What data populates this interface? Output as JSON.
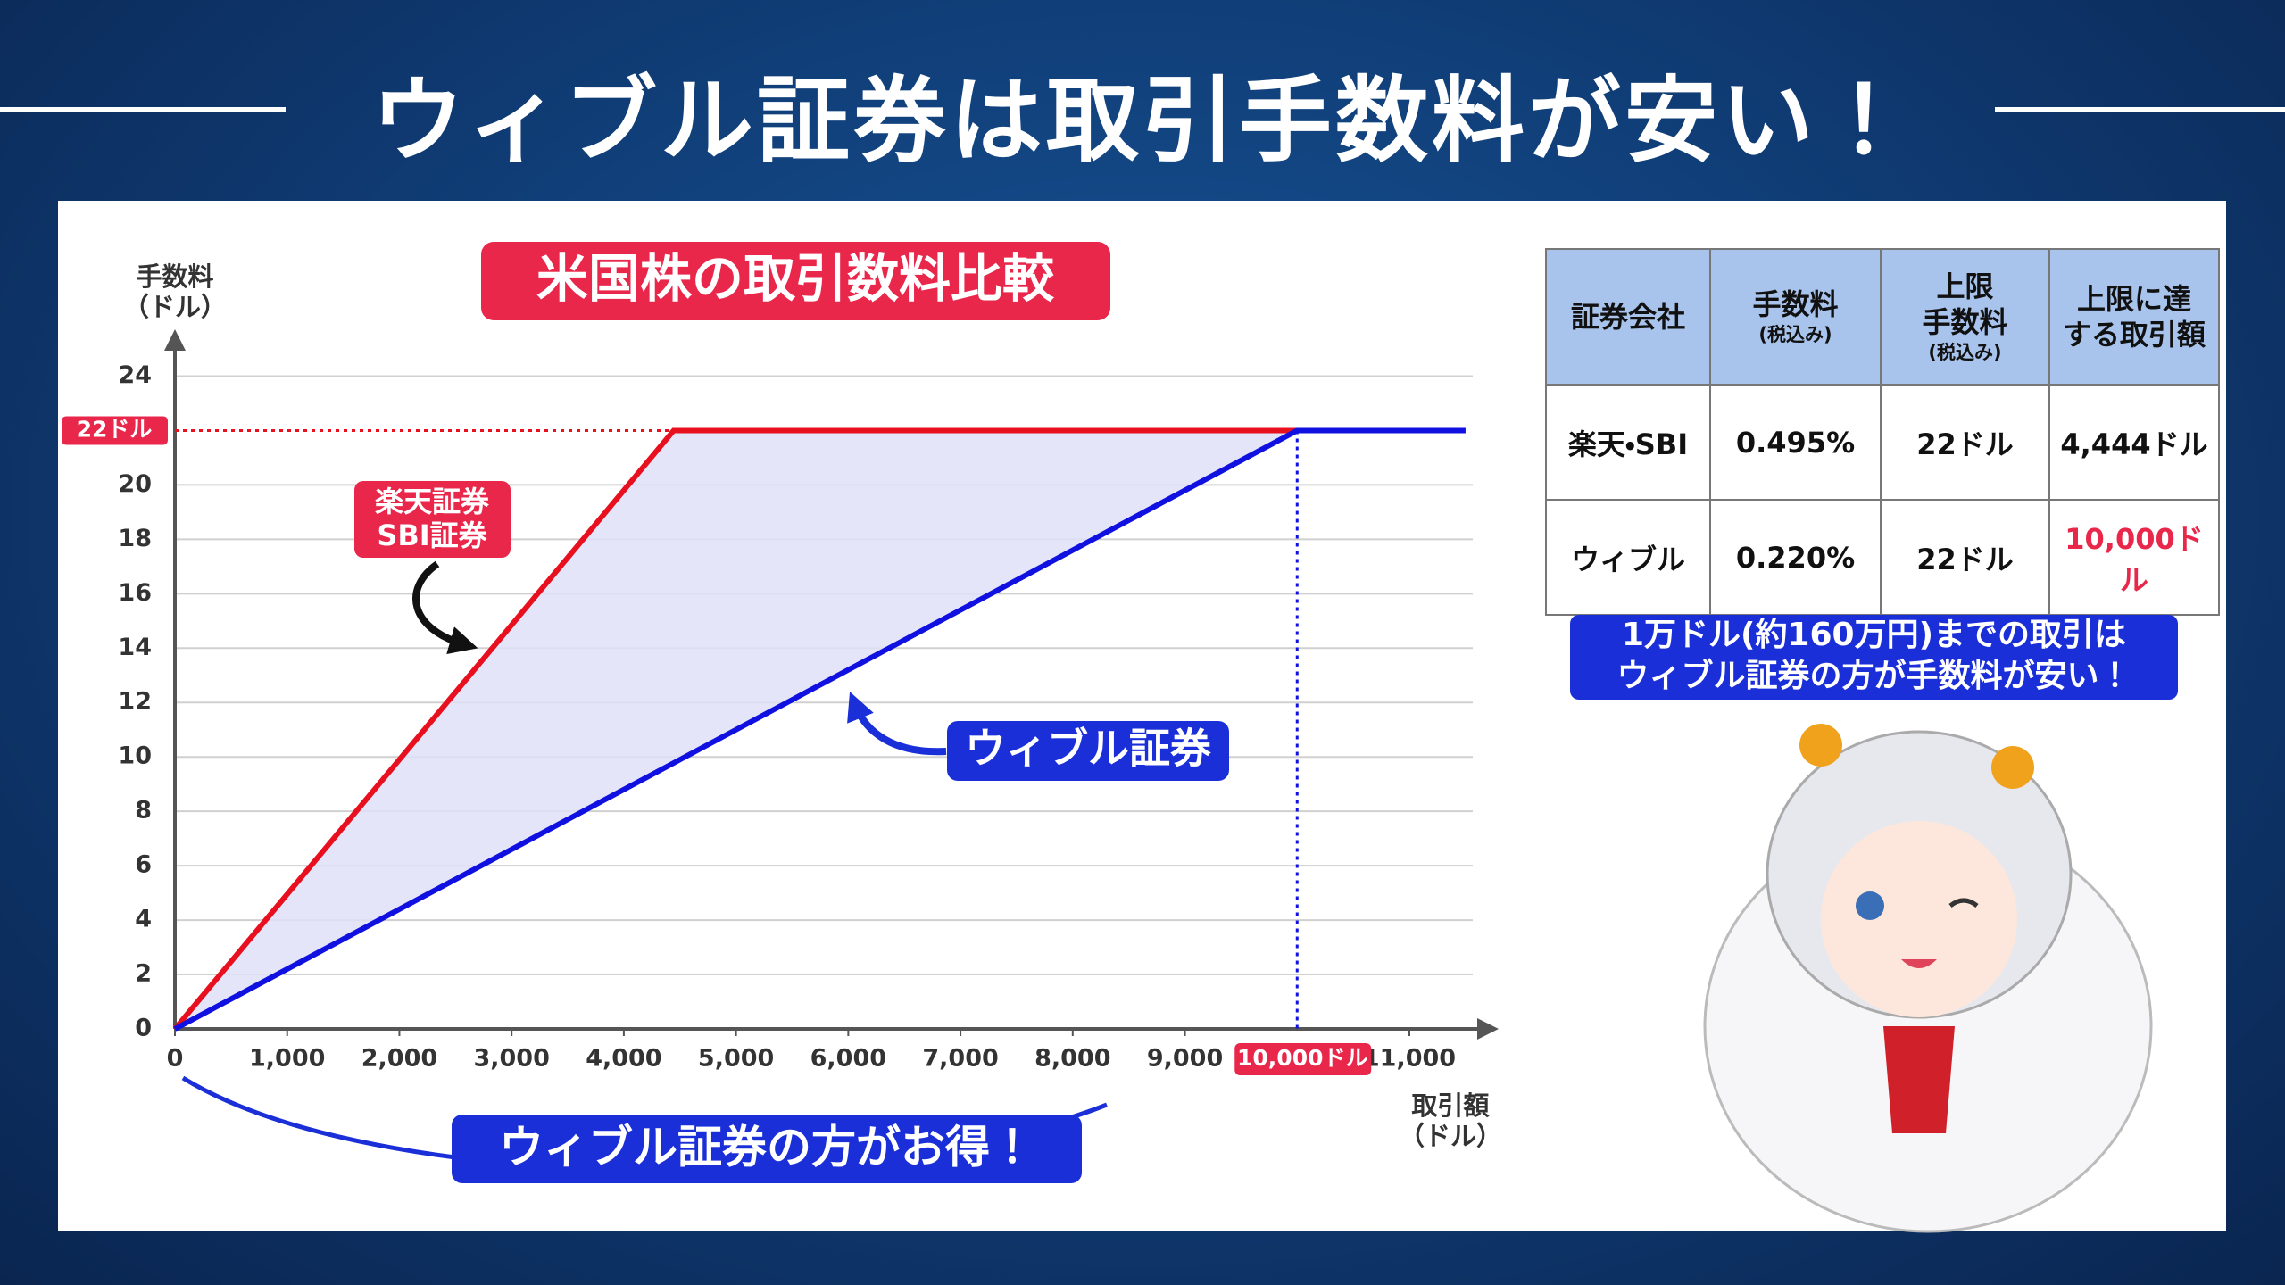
{
  "page_title": "ウィブル証券は取引手数料が安い！",
  "chart_data": {
    "type": "line",
    "title": "米国株の取引数料比較",
    "y_label": [
      "手数料",
      "（ドル）"
    ],
    "x_label": [
      "取引額",
      "（ドル）"
    ],
    "xlim": [
      0,
      11700
    ],
    "ylim": [
      0,
      25
    ],
    "xticks": [
      0,
      {
        "value": 1000,
        "label": "1,000"
      },
      {
        "value": 2000,
        "label": "2,000"
      },
      {
        "value": 3000,
        "label": "3,000"
      },
      {
        "value": 4000,
        "label": "4,000"
      },
      {
        "value": 5000,
        "label": "5,000"
      },
      {
        "value": 6000,
        "label": "6,000"
      },
      {
        "value": 7000,
        "label": "7,000"
      },
      {
        "value": 8000,
        "label": "8,000"
      },
      {
        "value": 9000,
        "label": "9,000"
      },
      {
        "value": 11000,
        "label": "11,000"
      }
    ],
    "yticks": [
      0,
      2,
      4,
      6,
      8,
      10,
      12,
      14,
      16,
      18,
      20,
      24
    ],
    "grid": true,
    "series": [
      {
        "label": [
          "楽天証券",
          "SBI証券"
        ],
        "color": "#e8101e",
        "x": [
          0,
          4444,
          11500
        ],
        "values": [
          0,
          22,
          22
        ]
      },
      {
        "label": [
          "ウィブル証券"
        ],
        "color": "#1010e0",
        "x": [
          0,
          10000,
          11500
        ],
        "values": [
          0,
          22,
          22
        ]
      }
    ],
    "area_color": "#dfe0f7",
    "y_marker": {
      "value": 22,
      "label": "22ドル"
    },
    "x_marker": {
      "value": 10000,
      "label": "10,000ドル"
    },
    "callout": "ウィブル証券の方がお得！"
  },
  "table": {
    "header": [
      {
        "lines": [
          "証券会社"
        ]
      },
      {
        "lines": [
          "手数料"
        ],
        "note": "(税込み)"
      },
      {
        "lines": [
          "上限",
          "手数料"
        ],
        "note": "(税込み)"
      },
      {
        "lines": [
          "上限に達",
          "する取引額"
        ]
      }
    ],
    "rows": [
      [
        "楽天・SBI",
        "0.495%",
        "22ドル",
        "4,444ドル"
      ],
      [
        "ウィブル",
        "0.220%",
        "22ドル",
        "10,000ドル"
      ]
    ]
  },
  "note": [
    "1万ドル(約160万円)までの取引は",
    "ウィブル証券の方が手数料が安い！"
  ]
}
